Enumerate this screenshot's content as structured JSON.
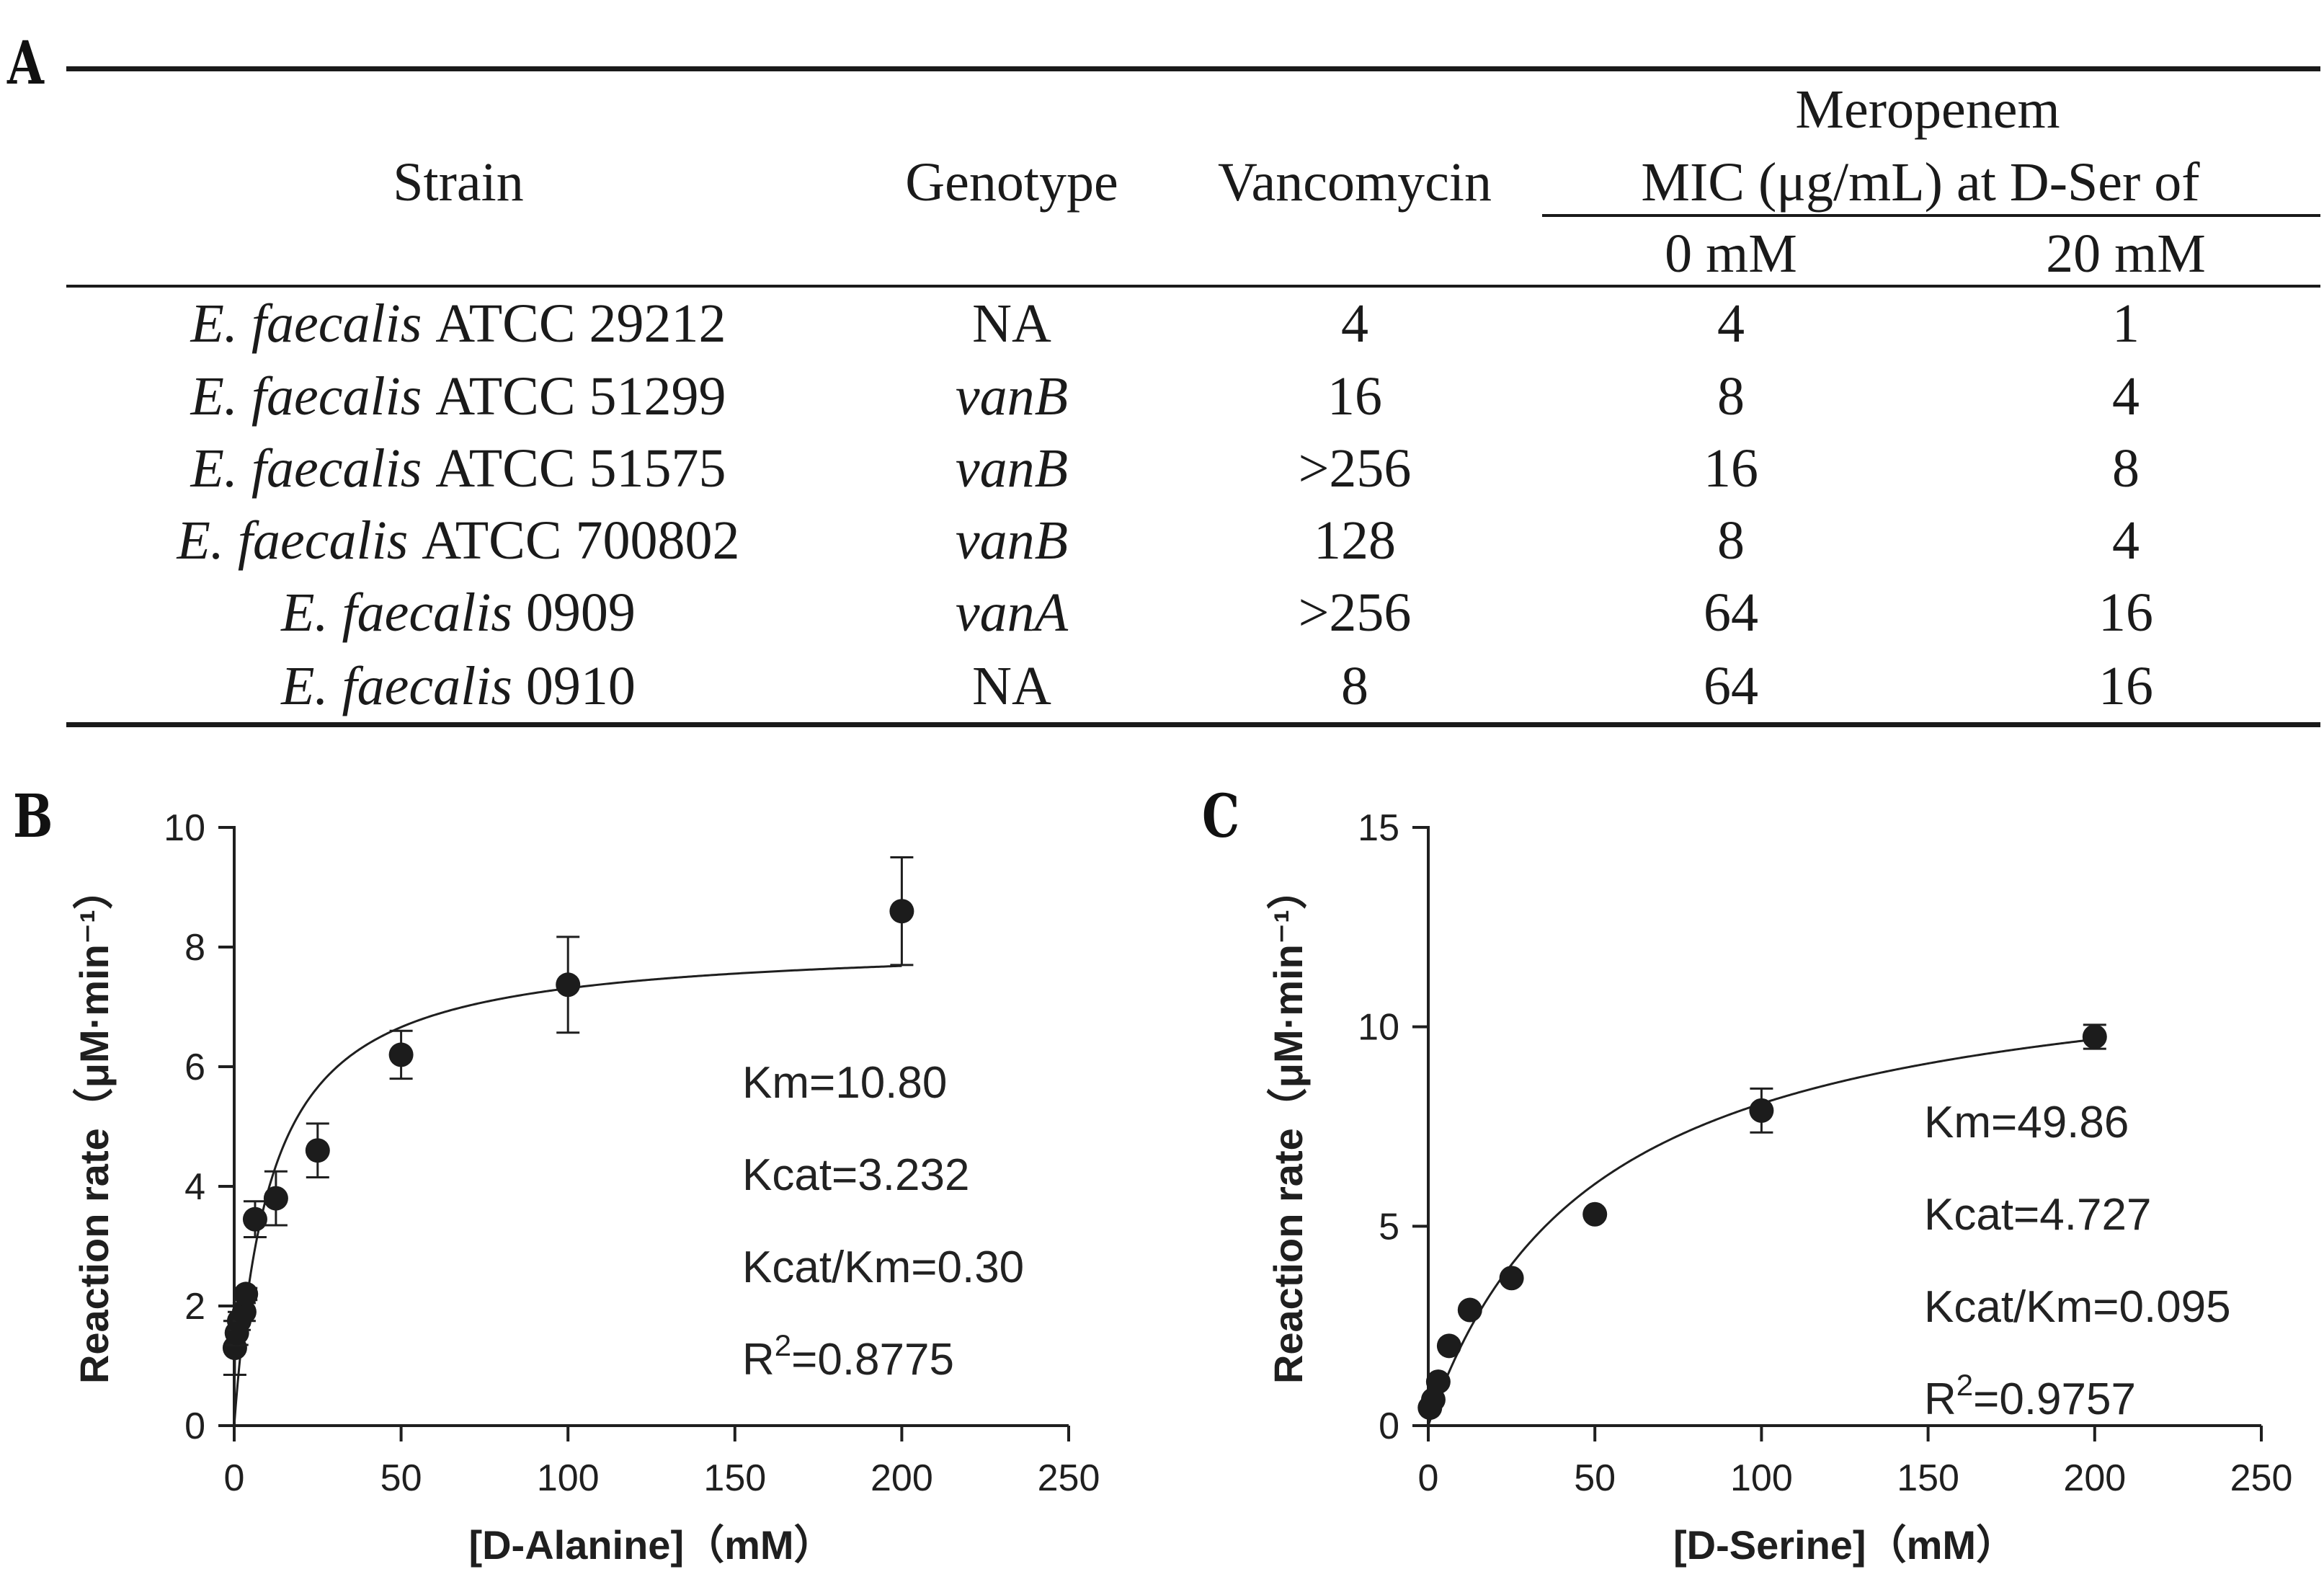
{
  "table": {
    "panel_label": "A",
    "headers": {
      "strain": "Strain",
      "genotype": "Genotype",
      "vancomycin": "Vancomycin",
      "group_line1": "Meropenem",
      "group_line2": "MIC (μg/mL)  at D-Ser of",
      "sub_0": "0 mM",
      "sub_20": "20 mM"
    },
    "rows": [
      {
        "species": "E. faecalis",
        "strain_id": "ATCC 29212",
        "genotype": "NA",
        "genotype_italic": false,
        "vancomycin": "4",
        "mic_0": "4",
        "mic_20": "1"
      },
      {
        "species": "E. faecalis",
        "strain_id": "ATCC 51299",
        "genotype": "vanB",
        "genotype_italic": true,
        "vancomycin": "16",
        "mic_0": "8",
        "mic_20": "4"
      },
      {
        "species": "E. faecalis",
        "strain_id": "ATCC 51575",
        "genotype": "vanB",
        "genotype_italic": true,
        "vancomycin": ">256",
        "mic_0": "16",
        "mic_20": "8"
      },
      {
        "species": "E. faecalis",
        "strain_id": "ATCC 700802",
        "genotype": "vanB",
        "genotype_italic": true,
        "vancomycin": "128",
        "mic_0": "8",
        "mic_20": "4"
      },
      {
        "species": "E. faecalis",
        "strain_id": "0909",
        "genotype": "vanA",
        "genotype_italic": true,
        "vancomycin": ">256",
        "mic_0": "64",
        "mic_20": "16"
      },
      {
        "species": "E. faecalis",
        "strain_id": "0910",
        "genotype": "NA",
        "genotype_italic": false,
        "vancomycin": "8",
        "mic_0": "64",
        "mic_20": "16"
      }
    ]
  },
  "chart_data": [
    {
      "panel_label": "B",
      "type": "scatter",
      "fit": "Michaelis-Menten",
      "xlabel": "[D-Alanine]（mM）",
      "ylabel": "Reaction rate（μM·min⁻¹）",
      "xlim": [
        0,
        250
      ],
      "ylim": [
        0,
        10
      ],
      "xticks": [
        0,
        50,
        100,
        150,
        200,
        250
      ],
      "yticks": [
        0,
        2,
        4,
        6,
        8,
        10
      ],
      "points": [
        {
          "x": 0.2,
          "y": 1.3,
          "err": 0.45
        },
        {
          "x": 0.8,
          "y": 1.55,
          "err": 0.2
        },
        {
          "x": 1.5,
          "y": 1.75,
          "err": 0.15
        },
        {
          "x": 3,
          "y": 1.9,
          "err": 0.15
        },
        {
          "x": 3.5,
          "y": 2.2,
          "err": 0.1
        },
        {
          "x": 6.25,
          "y": 3.45,
          "err": 0.3
        },
        {
          "x": 12.5,
          "y": 3.8,
          "err": 0.45
        },
        {
          "x": 25,
          "y": 4.6,
          "err": 0.45
        },
        {
          "x": 50,
          "y": 6.2,
          "err": 0.4
        },
        {
          "x": 100,
          "y": 7.37,
          "err": 0.8
        },
        {
          "x": 200,
          "y": 8.6,
          "err": 0.9
        }
      ],
      "fit_params": {
        "vmax": 8.1,
        "km": 10.8
      },
      "annotations": [
        {
          "label": "Km=10.80"
        },
        {
          "label": "Kcat=3.232"
        },
        {
          "label": "Kcat/Km=0.30"
        },
        {
          "label": "R",
          "sup": "2",
          "rest": "=0.8775"
        }
      ]
    },
    {
      "panel_label": "C",
      "type": "scatter",
      "fit": "Michaelis-Menten",
      "xlabel": "[D-Serine]（mM）",
      "ylabel": "Reaction rate（μM·min⁻¹）",
      "xlim": [
        0,
        250
      ],
      "ylim": [
        0,
        15
      ],
      "xticks": [
        0,
        50,
        100,
        150,
        200,
        250
      ],
      "yticks": [
        0,
        5,
        10,
        15
      ],
      "points": [
        {
          "x": 0.5,
          "y": 0.45,
          "err": 0
        },
        {
          "x": 1.5,
          "y": 0.65,
          "err": 0
        },
        {
          "x": 3,
          "y": 1.1,
          "err": 0
        },
        {
          "x": 6.25,
          "y": 2.0,
          "err": 0
        },
        {
          "x": 12.5,
          "y": 2.9,
          "err": 0
        },
        {
          "x": 25,
          "y": 3.7,
          "err": 0
        },
        {
          "x": 50,
          "y": 5.3,
          "err": 0
        },
        {
          "x": 100,
          "y": 7.9,
          "err": 0.55
        },
        {
          "x": 200,
          "y": 9.75,
          "err": 0.3
        }
      ],
      "fit_params": {
        "vmax": 12.1,
        "km": 49.86
      },
      "annotations": [
        {
          "label": "Km=49.86"
        },
        {
          "label": "Kcat=4.727"
        },
        {
          "label": "Kcat/Km=0.095"
        },
        {
          "label": "R",
          "sup": "2",
          "rest": "=0.9757"
        }
      ]
    }
  ]
}
